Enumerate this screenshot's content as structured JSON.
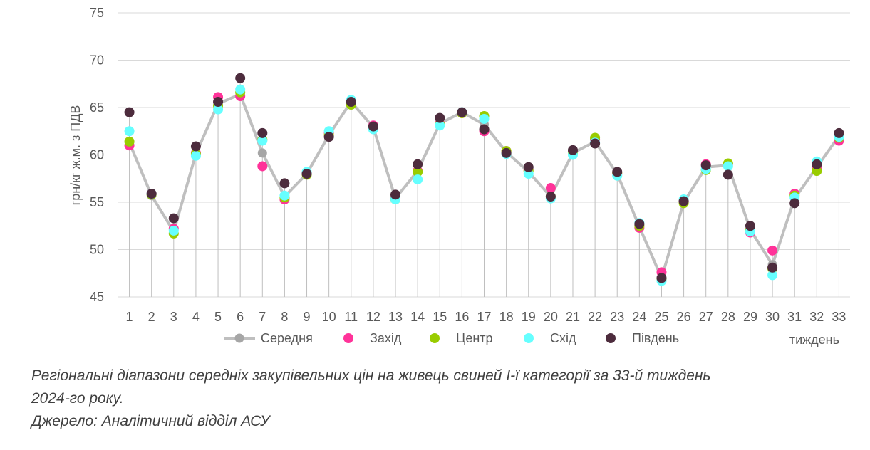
{
  "chart_data": {
    "type": "line",
    "ylabel": "грн/кг ж.м. з ПДВ",
    "xlabel": "тиждень",
    "ylim": [
      45,
      75
    ],
    "yticks": [
      45,
      50,
      55,
      60,
      65,
      70,
      75
    ],
    "categories": [
      "1",
      "2",
      "3",
      "4",
      "5",
      "6",
      "7",
      "8",
      "9",
      "10",
      "11",
      "12",
      "13",
      "14",
      "15",
      "16",
      "17",
      "18",
      "19",
      "20",
      "21",
      "22",
      "23",
      "24",
      "25",
      "26",
      "27",
      "28",
      "29",
      "30",
      "31",
      "32",
      "33"
    ],
    "grid": true,
    "legend_position": "bottom",
    "series": [
      {
        "name": "Середня",
        "color": "#BFBFBF",
        "style": "line",
        "values": [
          61.3,
          55.7,
          51.9,
          60.1,
          65.4,
          66.4,
          60.2,
          55.6,
          58.0,
          62.1,
          65.6,
          62.9,
          55.4,
          58.3,
          63.3,
          64.5,
          63.2,
          60.3,
          58.2,
          55.6,
          60.2,
          61.4,
          58.0,
          52.4,
          47.0,
          55.0,
          58.7,
          58.9,
          52.1,
          48.4,
          55.4,
          58.7,
          62.0
        ]
      },
      {
        "name": "Захід",
        "color": "#FF3399",
        "style": "dots",
        "values": [
          61.0,
          55.9,
          52.2,
          60.2,
          66.1,
          66.2,
          58.8,
          55.3,
          58.0,
          62.3,
          65.4,
          63.1,
          55.4,
          58.3,
          63.3,
          64.4,
          62.5,
          60.4,
          58.4,
          56.5,
          60.3,
          61.6,
          58.0,
          52.3,
          47.6,
          55.1,
          59.0,
          59.0,
          51.8,
          49.9,
          55.9,
          58.6,
          61.5
        ]
      },
      {
        "name": "Центр",
        "color": "#99CC00",
        "style": "dots",
        "values": [
          61.4,
          55.8,
          51.7,
          60.1,
          65.2,
          66.6,
          61.6,
          55.5,
          57.9,
          62.1,
          65.3,
          62.8,
          55.3,
          58.2,
          63.2,
          64.4,
          64.1,
          60.4,
          58.3,
          55.6,
          60.2,
          61.8,
          58.1,
          52.5,
          46.9,
          54.9,
          58.4,
          59.1,
          52.1,
          48.0,
          55.7,
          58.3,
          61.8
        ]
      },
      {
        "name": "Схід",
        "color": "#66FFFF",
        "style": "dots",
        "values": [
          62.5,
          55.9,
          52.0,
          59.9,
          64.8,
          66.9,
          61.5,
          55.7,
          58.2,
          62.5,
          65.8,
          62.7,
          55.3,
          57.4,
          63.1,
          64.5,
          63.8,
          60.1,
          58.0,
          55.4,
          60.0,
          61.3,
          57.8,
          52.8,
          46.7,
          55.3,
          58.5,
          58.8,
          51.9,
          47.3,
          55.5,
          59.3,
          61.9
        ]
      },
      {
        "name": "Південь",
        "color": "#4D2C3D",
        "style": "dots",
        "values": [
          64.5,
          55.9,
          53.3,
          60.9,
          65.6,
          68.1,
          62.3,
          57.0,
          58.0,
          61.9,
          65.6,
          63.0,
          55.8,
          59.0,
          63.9,
          64.5,
          62.7,
          60.2,
          58.7,
          55.6,
          60.5,
          61.2,
          58.2,
          52.7,
          47.0,
          55.1,
          58.9,
          57.9,
          52.5,
          48.1,
          54.9,
          59.0,
          62.3
        ]
      }
    ]
  },
  "caption": {
    "line1": "Регіональні діапазони середніх закупівельних цін на живець свиней І-ї категорії за 33-й тиждень",
    "line2": "2024-го року.",
    "line3": "Джерело: Аналітичний відділ АСУ"
  }
}
